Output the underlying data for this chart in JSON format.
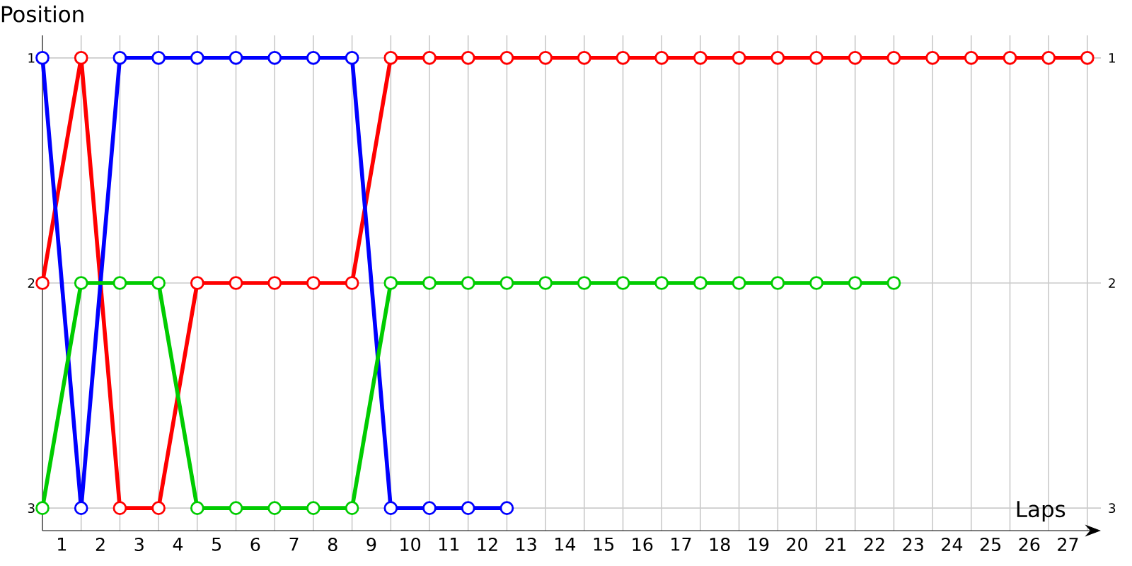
{
  "chart_data": {
    "type": "line",
    "xlabel": "Laps",
    "ylabel": "Position",
    "x": [
      0,
      1,
      2,
      3,
      4,
      5,
      6,
      7,
      8,
      9,
      10,
      11,
      12,
      13,
      14,
      15,
      16,
      17,
      18,
      19,
      20,
      21,
      22,
      23,
      24,
      25,
      26,
      27
    ],
    "series": [
      {
        "color": "#ff0000",
        "values": [
          2,
          1,
          3,
          3,
          2,
          2,
          2,
          2,
          2,
          1,
          1,
          1,
          1,
          1,
          1,
          1,
          1,
          1,
          1,
          1,
          1,
          1,
          1,
          1,
          1,
          1,
          1,
          1
        ]
      },
      {
        "color": "#0000ff",
        "values": [
          1,
          3,
          1,
          1,
          1,
          1,
          1,
          1,
          1,
          3,
          3,
          3,
          3,
          null,
          null,
          null,
          null,
          null,
          null,
          null,
          null,
          null,
          null,
          null,
          null,
          null,
          null,
          null
        ]
      },
      {
        "color": "#00cc00",
        "values": [
          3,
          2,
          2,
          2,
          3,
          3,
          3,
          3,
          3,
          2,
          2,
          2,
          2,
          2,
          2,
          2,
          2,
          2,
          2,
          2,
          2,
          2,
          2,
          null,
          null,
          null,
          null,
          null
        ]
      }
    ],
    "xlim": [
      0,
      27.35
    ],
    "xticks": [
      {
        "value": 0.5,
        "label": "1"
      },
      {
        "value": 1,
        "label": null
      },
      {
        "value": 1.5,
        "label": "2"
      },
      {
        "value": 2,
        "label": null
      },
      {
        "value": 2.5,
        "label": "3"
      },
      {
        "value": 3,
        "label": null
      },
      {
        "value": 3.5,
        "label": "4"
      },
      {
        "value": 4,
        "label": null
      },
      {
        "value": 4.5,
        "label": "5"
      },
      {
        "value": 5,
        "label": null
      },
      {
        "value": 5.5,
        "label": "6"
      },
      {
        "value": 6,
        "label": null
      },
      {
        "value": 6.5,
        "label": "7"
      },
      {
        "value": 7,
        "label": null
      },
      {
        "value": 7.5,
        "label": "8"
      },
      {
        "value": 8,
        "label": null
      },
      {
        "value": 8.5,
        "label": "9"
      },
      {
        "value": 9,
        "label": null
      },
      {
        "value": 9.5,
        "label": "10"
      },
      {
        "value": 10,
        "label": null
      },
      {
        "value": 10.5,
        "label": "11"
      },
      {
        "value": 11,
        "label": null
      },
      {
        "value": 11.5,
        "label": "12"
      },
      {
        "value": 12,
        "label": null
      },
      {
        "value": 12.5,
        "label": "13"
      },
      {
        "value": 13,
        "label": null
      },
      {
        "value": 13.5,
        "label": "14"
      },
      {
        "value": 14,
        "label": null
      },
      {
        "value": 14.5,
        "label": "15"
      },
      {
        "value": 15,
        "label": null
      },
      {
        "value": 15.5,
        "label": "16"
      },
      {
        "value": 16,
        "label": null
      },
      {
        "value": 16.5,
        "label": "17"
      },
      {
        "value": 17,
        "label": null
      },
      {
        "value": 17.5,
        "label": "18"
      },
      {
        "value": 18,
        "label": null
      },
      {
        "value": 18.5,
        "label": "19"
      },
      {
        "value": 19,
        "label": null
      },
      {
        "value": 19.5,
        "label": "20"
      },
      {
        "value": 20,
        "label": null
      },
      {
        "value": 20.5,
        "label": "21"
      },
      {
        "value": 21,
        "label": null
      },
      {
        "value": 21.5,
        "label": "22"
      },
      {
        "value": 22,
        "label": null
      },
      {
        "value": 22.5,
        "label": "23"
      },
      {
        "value": 23,
        "label": null
      },
      {
        "value": 23.5,
        "label": "24"
      },
      {
        "value": 24,
        "label": null
      },
      {
        "value": 24.5,
        "label": "25"
      },
      {
        "value": 25,
        "label": null
      },
      {
        "value": 25.5,
        "label": "26"
      },
      {
        "value": 26,
        "label": null
      },
      {
        "value": 26.5,
        "label": "27"
      },
      {
        "value": 27,
        "label": null
      }
    ],
    "ylim": [
      3.1,
      0.9
    ],
    "yticks": [
      1,
      2,
      3
    ],
    "y2lim": [
      3.1,
      0.9
    ],
    "y2ticks": [
      1,
      2,
      3
    ],
    "grid": true,
    "marker": "circle",
    "line_style": "solid"
  }
}
